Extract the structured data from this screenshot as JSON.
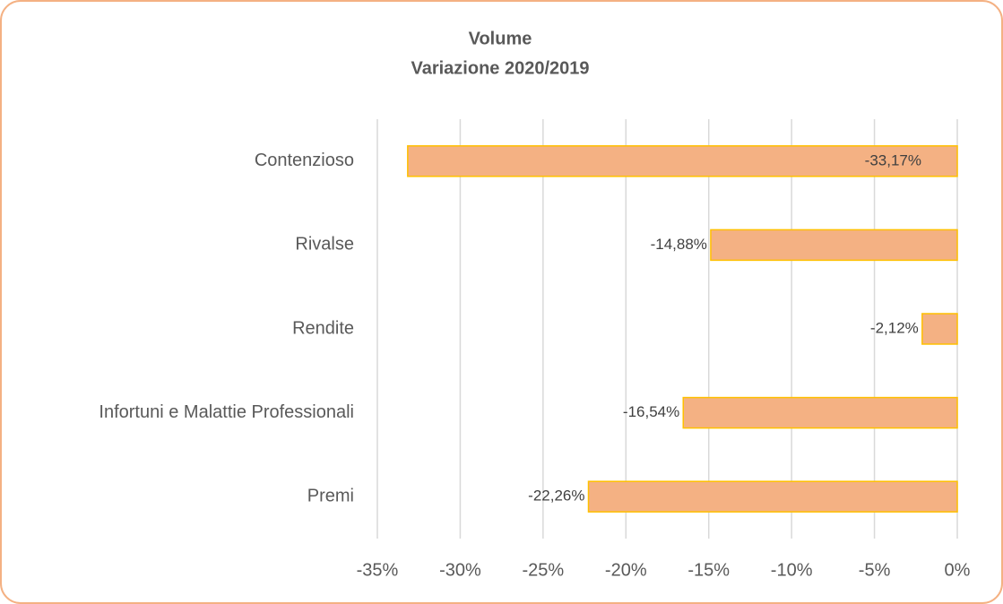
{
  "chart_data": {
    "type": "bar",
    "orientation": "horizontal",
    "title": "Volume",
    "subtitle": "Variazione 2020/2019",
    "categories": [
      "Contenzioso",
      "Rivalse",
      "Rendite",
      "Infortuni e Malattie Professionali",
      "Premi"
    ],
    "values": [
      -33.17,
      -14.88,
      -2.12,
      -16.54,
      -22.26
    ],
    "value_labels": [
      "-33,17%",
      "-14,88%",
      "-2,12%",
      "-16,54%",
      "-22,26%"
    ],
    "color": "#f4b183",
    "edge_color": "#ffc000",
    "xlim": [
      -35,
      0
    ],
    "xticks": [
      {
        "value": -35,
        "label": "-35%"
      },
      {
        "value": -30,
        "label": "-30%"
      },
      {
        "value": -25,
        "label": "-25%"
      },
      {
        "value": -20,
        "label": "-20%"
      },
      {
        "value": -15,
        "label": "-15%"
      },
      {
        "value": -10,
        "label": "-10%"
      },
      {
        "value": -5,
        "label": "-5%"
      },
      {
        "value": 0,
        "label": "0%"
      }
    ],
    "grid": true
  }
}
